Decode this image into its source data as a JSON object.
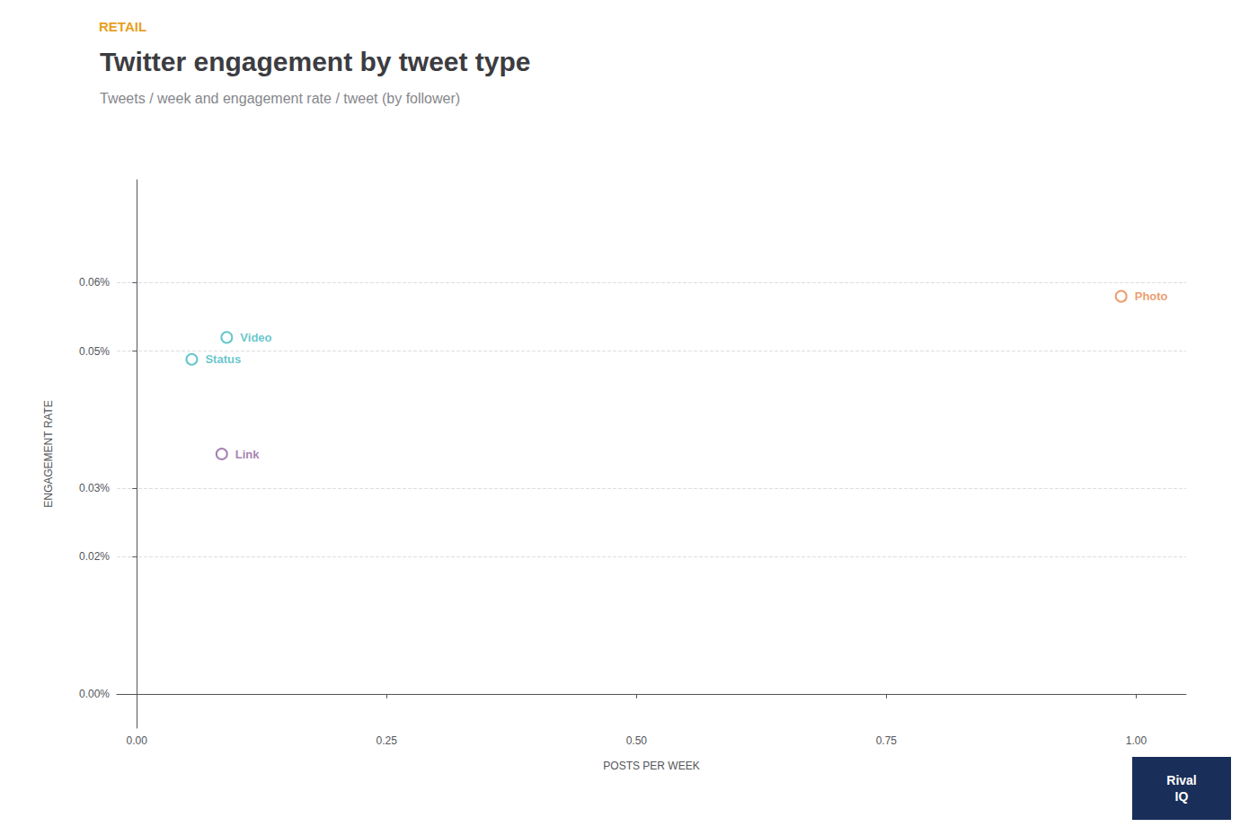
{
  "chart_data": {
    "type": "scatter",
    "title": "Twitter engagement by tweet type",
    "subtitle": "Tweets / week and engagement rate / tweet (by follower)",
    "xlabel": "POSTS PER WEEK",
    "ylabel": "ENGAGEMENT RATE",
    "marker": "emptyCircle",
    "grid": true,
    "series": [
      {
        "name": "Video",
        "color": "#3fb8c0",
        "x": [
          0.09
        ],
        "values": [
          0.00052
        ]
      },
      {
        "name": "Status",
        "color": "#3fb8c0",
        "x": [
          0.055
        ],
        "values": [
          0.000488
        ]
      },
      {
        "name": "Link",
        "color": "#9060a0",
        "x": [
          0.085
        ],
        "values": [
          0.00035
        ]
      },
      {
        "name": "Photo",
        "color": "#e8834a",
        "x": [
          0.985
        ],
        "values": [
          0.00058
        ]
      }
    ],
    "xlim": [
      -0.02,
      1.05
    ],
    "xticks": [
      {
        "value": 0.0,
        "label": "0.00"
      },
      {
        "value": 0.25,
        "label": "0.25"
      },
      {
        "value": 0.5,
        "label": "0.50"
      },
      {
        "value": 0.75,
        "label": "0.75"
      },
      {
        "value": 1.0,
        "label": "1.00"
      }
    ],
    "ylim": [
      -5e-05,
      0.00075
    ],
    "yticks": [
      {
        "value": 0.0,
        "label": "0.00%"
      },
      {
        "value": 0.0002,
        "label": "0.02%"
      },
      {
        "value": 0.0003,
        "label": "0.03%"
      },
      {
        "value": 0.0005,
        "label": "0.05%"
      },
      {
        "value": 0.0006,
        "label": "0.06%"
      }
    ],
    "annotations": [
      {
        "text": "RETAIL",
        "color": "#e8a020"
      },
      {
        "text": "Rival\nIQ",
        "color": "#1a2e5a"
      }
    ]
  }
}
